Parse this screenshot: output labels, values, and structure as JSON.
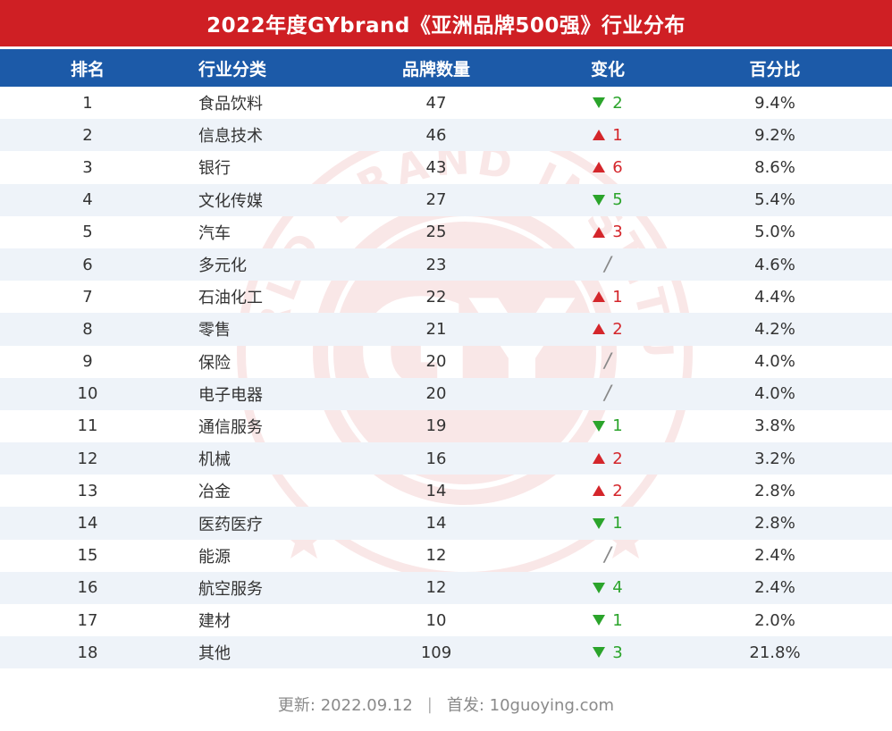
{
  "title": "2022年度GYbrand《亚洲品牌500强》行业分布",
  "colors": {
    "title_bg": "#cf1f24",
    "header_bg": "#1c5aa8",
    "row_stripe": "#eef3f9",
    "up": "#d4262b",
    "down": "#2ba42b"
  },
  "headers": {
    "rank": "排名",
    "industry": "行业分类",
    "count": "品牌数量",
    "change": "变化",
    "percent": "百分比"
  },
  "rows": [
    {
      "rank": "1",
      "industry": "食品饮料",
      "count": "47",
      "change_dir": "down",
      "change": "2",
      "percent": "9.4%"
    },
    {
      "rank": "2",
      "industry": "信息技术",
      "count": "46",
      "change_dir": "up",
      "change": "1",
      "percent": "9.2%"
    },
    {
      "rank": "3",
      "industry": "银行",
      "count": "43",
      "change_dir": "up",
      "change": "6",
      "percent": "8.6%"
    },
    {
      "rank": "4",
      "industry": "文化传媒",
      "count": "27",
      "change_dir": "down",
      "change": "5",
      "percent": "5.4%"
    },
    {
      "rank": "5",
      "industry": "汽车",
      "count": "25",
      "change_dir": "up",
      "change": "3",
      "percent": "5.0%"
    },
    {
      "rank": "6",
      "industry": "多元化",
      "count": "23",
      "change_dir": "none",
      "change": "/",
      "percent": "4.6%"
    },
    {
      "rank": "7",
      "industry": "石油化工",
      "count": "22",
      "change_dir": "up",
      "change": "1",
      "percent": "4.4%"
    },
    {
      "rank": "8",
      "industry": "零售",
      "count": "21",
      "change_dir": "up",
      "change": "2",
      "percent": "4.2%"
    },
    {
      "rank": "9",
      "industry": "保险",
      "count": "20",
      "change_dir": "none",
      "change": "/",
      "percent": "4.0%"
    },
    {
      "rank": "10",
      "industry": "电子电器",
      "count": "20",
      "change_dir": "none",
      "change": "/",
      "percent": "4.0%"
    },
    {
      "rank": "11",
      "industry": "通信服务",
      "count": "19",
      "change_dir": "down",
      "change": "1",
      "percent": "3.8%"
    },
    {
      "rank": "12",
      "industry": "机械",
      "count": "16",
      "change_dir": "up",
      "change": "2",
      "percent": "3.2%"
    },
    {
      "rank": "13",
      "industry": "冶金",
      "count": "14",
      "change_dir": "up",
      "change": "2",
      "percent": "2.8%"
    },
    {
      "rank": "14",
      "industry": "医药医疗",
      "count": "14",
      "change_dir": "down",
      "change": "1",
      "percent": "2.8%"
    },
    {
      "rank": "15",
      "industry": "能源",
      "count": "12",
      "change_dir": "none",
      "change": "/",
      "percent": "2.4%"
    },
    {
      "rank": "16",
      "industry": "航空服务",
      "count": "12",
      "change_dir": "down",
      "change": "4",
      "percent": "2.4%"
    },
    {
      "rank": "17",
      "industry": "建材",
      "count": "10",
      "change_dir": "down",
      "change": "1",
      "percent": "2.0%"
    },
    {
      "rank": "18",
      "industry": "其他",
      "count": "109",
      "change_dir": "down",
      "change": "3",
      "percent": "21.8%"
    }
  ],
  "watermark": {
    "letters": "GY",
    "ring_text": "WORLD BRAND INSTITUTE"
  },
  "footer": {
    "updated": "更新: 2022.09.12",
    "separator": "|",
    "source": "首发: 10guoying.com"
  }
}
